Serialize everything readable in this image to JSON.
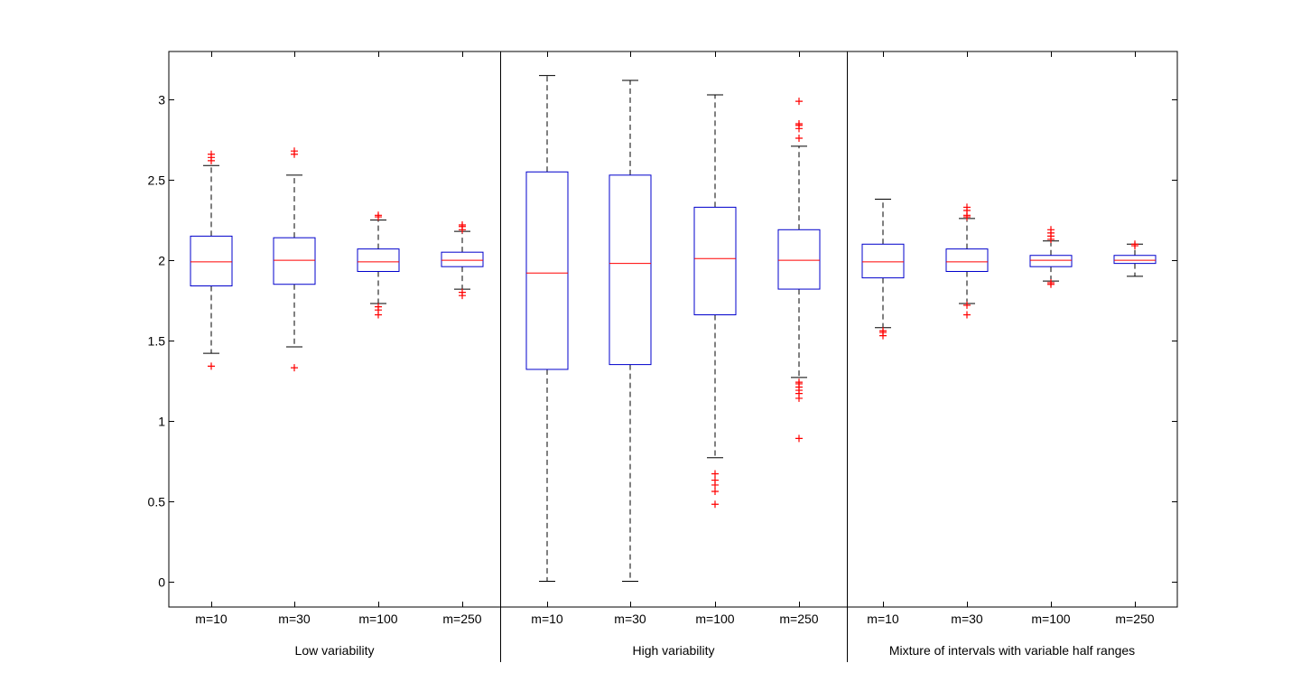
{
  "chart_data": {
    "type": "boxplot",
    "title": "",
    "ylim": [
      -0.16,
      3.3
    ],
    "yticks": [
      0,
      0.5,
      1,
      1.5,
      2,
      2.5,
      3
    ],
    "ytick_labels": [
      "0",
      "0.5",
      "1",
      "1.5",
      "2",
      "2.5",
      "3"
    ],
    "colors": {
      "box": "#0000cc",
      "median": "#ff0000",
      "whisker": "#000000",
      "outlier": "#ff0000"
    },
    "groups": [
      {
        "label": "Low variability",
        "boxes": [
          {
            "category": "m=10",
            "q1": 1.84,
            "median": 1.99,
            "q3": 2.15,
            "whisker_low": 1.42,
            "whisker_high": 2.59,
            "outliers": [
              1.34,
              2.62,
              2.64,
              2.66
            ]
          },
          {
            "category": "m=30",
            "q1": 1.85,
            "median": 2.0,
            "q3": 2.14,
            "whisker_low": 1.46,
            "whisker_high": 2.53,
            "outliers": [
              1.33,
              2.66,
              2.68
            ]
          },
          {
            "category": "m=100",
            "q1": 1.93,
            "median": 1.99,
            "q3": 2.07,
            "whisker_low": 1.73,
            "whisker_high": 2.25,
            "outliers": [
              1.66,
              1.69,
              1.71,
              2.27,
              2.28
            ]
          },
          {
            "category": "m=250",
            "q1": 1.96,
            "median": 2.0,
            "q3": 2.05,
            "whisker_low": 1.82,
            "whisker_high": 2.18,
            "outliers": [
              1.78,
              1.8,
              2.19,
              2.21,
              2.22
            ]
          }
        ]
      },
      {
        "label": "High variability",
        "boxes": [
          {
            "category": "m=10",
            "q1": 1.32,
            "median": 1.92,
            "q3": 2.55,
            "whisker_low": 0.0,
            "whisker_high": 3.15,
            "outliers": []
          },
          {
            "category": "m=30",
            "q1": 1.35,
            "median": 1.98,
            "q3": 2.53,
            "whisker_low": 0.0,
            "whisker_high": 3.12,
            "outliers": []
          },
          {
            "category": "m=100",
            "q1": 1.66,
            "median": 2.01,
            "q3": 2.33,
            "whisker_low": 0.77,
            "whisker_high": 3.03,
            "outliers": [
              0.48,
              0.56,
              0.6,
              0.63,
              0.67
            ]
          },
          {
            "category": "m=250",
            "q1": 1.82,
            "median": 2.0,
            "q3": 2.19,
            "whisker_low": 1.27,
            "whisker_high": 2.71,
            "outliers": [
              0.89,
              1.14,
              1.17,
              1.19,
              1.21,
              1.23,
              1.24,
              2.76,
              2.82,
              2.84,
              2.85,
              2.99
            ]
          }
        ]
      },
      {
        "label": "Mixture of intervals with variable half ranges",
        "boxes": [
          {
            "category": "m=10",
            "q1": 1.89,
            "median": 1.99,
            "q3": 2.1,
            "whisker_low": 1.58,
            "whisker_high": 2.38,
            "outliers": [
              1.53,
              1.55,
              1.56
            ]
          },
          {
            "category": "m=30",
            "q1": 1.93,
            "median": 1.99,
            "q3": 2.07,
            "whisker_low": 1.73,
            "whisker_high": 2.26,
            "outliers": [
              1.66,
              1.72,
              2.27,
              2.28,
              2.31,
              2.33
            ]
          },
          {
            "category": "m=100",
            "q1": 1.96,
            "median": 2.0,
            "q3": 2.03,
            "whisker_low": 1.87,
            "whisker_high": 2.12,
            "outliers": [
              1.85,
              1.86,
              2.13,
              2.15,
              2.17,
              2.19
            ]
          },
          {
            "category": "m=250",
            "q1": 1.98,
            "median": 2.0,
            "q3": 2.03,
            "whisker_low": 1.9,
            "whisker_high": 2.1,
            "outliers": [
              2.09,
              2.1
            ]
          }
        ]
      }
    ]
  }
}
